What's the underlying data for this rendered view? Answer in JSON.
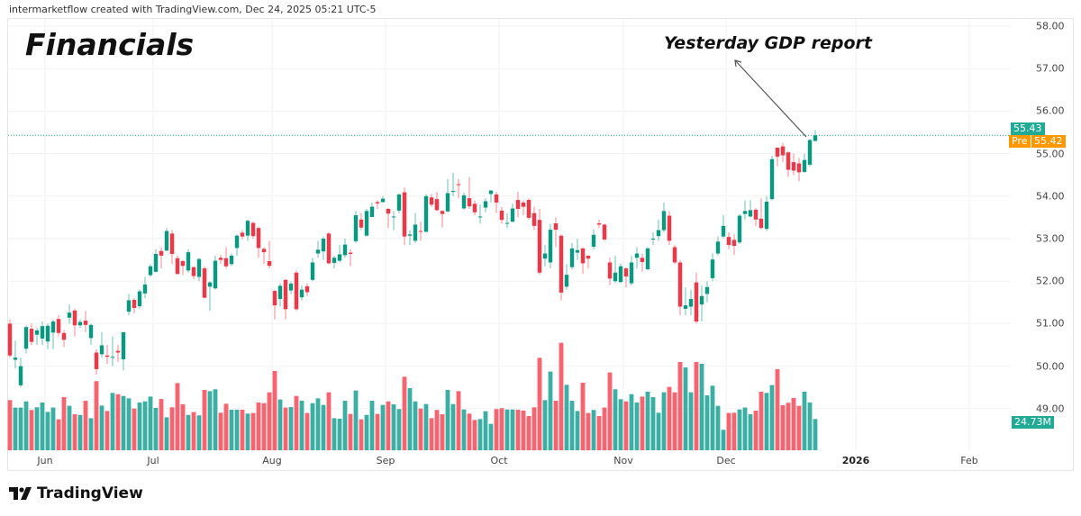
{
  "header": {
    "credit": "intermarketflow created with TradingView.com, Dec 24, 2025 05:21 UTC-5"
  },
  "footer": {
    "logo_text": "TradingView",
    "logo_icon": "tradingview-logo-icon"
  },
  "colors": {
    "up": "#089981",
    "down": "#f23645",
    "vol_up": "#26a69a",
    "vol_down": "#f7525f",
    "last_price": "#22ab94",
    "premarket": "#ff9800"
  },
  "chart_data": {
    "type": "candlestick",
    "title": "Financials",
    "annotation": {
      "text": "Yesterday GDP report",
      "arrow": true
    },
    "y_ticks": [
      "58.00",
      "57.00",
      "56.00",
      "55.00",
      "54.00",
      "53.00",
      "52.00",
      "51.00",
      "50.00",
      "49.00"
    ],
    "ylim": [
      48.5,
      58.3
    ],
    "x_ticks": [
      {
        "label": "Jun",
        "date": "2025-06-02"
      },
      {
        "label": "Jul",
        "date": "2025-07-01"
      },
      {
        "label": "Aug",
        "date": "2025-08-01"
      },
      {
        "label": "Sep",
        "date": "2025-09-02"
      },
      {
        "label": "Oct",
        "date": "2025-10-01"
      },
      {
        "label": "Nov",
        "date": "2025-11-03"
      },
      {
        "label": "Dec",
        "date": "2025-12-01"
      },
      {
        "label": "2026",
        "date": "2026-01-02",
        "bold": true
      },
      {
        "label": "Feb",
        "date": "2026-02-02"
      }
    ],
    "last_price": {
      "value": "55.43"
    },
    "premarket": {
      "label": "Pre",
      "value": "55.42"
    },
    "last_volume": {
      "value": "24.73M"
    },
    "grid": true,
    "columns": [
      "date",
      "open",
      "high",
      "low",
      "close",
      "volume_millions"
    ],
    "candles": [
      [
        "2025-05-21",
        51.0,
        51.1,
        50.2,
        50.25,
        39.7
      ],
      [
        "2025-05-22",
        50.15,
        50.6,
        49.95,
        50.2,
        33.8
      ],
      [
        "2025-05-23",
        49.55,
        50.2,
        49.5,
        50.0,
        33.8
      ],
      [
        "2025-05-27",
        50.41,
        50.95,
        50.3,
        50.92,
        38.7
      ],
      [
        "2025-05-28",
        50.88,
        51.0,
        50.5,
        50.57,
        31.9
      ],
      [
        "2025-05-29",
        50.74,
        50.9,
        50.5,
        50.84,
        34.0
      ],
      [
        "2025-05-30",
        50.65,
        51.05,
        50.5,
        50.94,
        37.8
      ],
      [
        "2025-06-02",
        50.58,
        51.0,
        50.4,
        50.95,
        30.4
      ],
      [
        "2025-06-03",
        50.79,
        51.1,
        50.4,
        51.05,
        33.8
      ],
      [
        "2025-06-04",
        51.11,
        51.2,
        50.7,
        50.78,
        24.5
      ],
      [
        "2025-06-05",
        50.78,
        50.85,
        50.45,
        50.62,
        42.1
      ],
      [
        "2025-06-06",
        51.14,
        51.45,
        51.0,
        51.26,
        35.2
      ],
      [
        "2025-06-09",
        51.31,
        51.35,
        50.7,
        50.96,
        28.5
      ],
      [
        "2025-06-10",
        50.96,
        51.1,
        50.9,
        51.04,
        28.0
      ],
      [
        "2025-06-11",
        51.07,
        51.3,
        50.8,
        50.97,
        39.2
      ],
      [
        "2025-06-12",
        50.66,
        51.0,
        50.5,
        50.97,
        25.4
      ],
      [
        "2025-06-13",
        50.32,
        50.4,
        49.8,
        49.93,
        54.7
      ],
      [
        "2025-06-16",
        50.28,
        50.8,
        50.2,
        50.49,
        35.4
      ],
      [
        "2025-06-17",
        50.25,
        50.5,
        50.05,
        50.22,
        31.1
      ],
      [
        "2025-06-18",
        50.2,
        50.7,
        50.0,
        50.22,
        45.4
      ],
      [
        "2025-06-20",
        50.36,
        50.5,
        50.1,
        50.32,
        44.4
      ],
      [
        "2025-06-23",
        50.16,
        50.8,
        49.9,
        50.8,
        43.0
      ],
      [
        "2025-06-24",
        51.28,
        51.7,
        51.2,
        51.55,
        41.1
      ],
      [
        "2025-06-25",
        51.56,
        51.6,
        51.25,
        51.37,
        33.0
      ],
      [
        "2025-06-26",
        51.41,
        51.8,
        51.35,
        51.76,
        37.8
      ],
      [
        "2025-06-27",
        51.71,
        52.1,
        51.6,
        51.92,
        38.7
      ],
      [
        "2025-06-30",
        52.14,
        52.4,
        52.1,
        52.35,
        42.5
      ],
      [
        "2025-07-01",
        52.22,
        52.75,
        52.2,
        52.64,
        33.5
      ],
      [
        "2025-07-02",
        52.71,
        52.8,
        52.3,
        52.6,
        40.6
      ],
      [
        "2025-07-03",
        52.72,
        53.25,
        52.7,
        53.18,
        26.1
      ],
      [
        "2025-07-07",
        53.12,
        53.2,
        52.4,
        52.64,
        34.0
      ],
      [
        "2025-07-08",
        52.54,
        52.6,
        52.15,
        52.17,
        53.2
      ],
      [
        "2025-07-09",
        52.47,
        52.5,
        52.15,
        52.36,
        36.4
      ],
      [
        "2025-07-10",
        52.25,
        52.75,
        52.2,
        52.68,
        28.0
      ],
      [
        "2025-07-11",
        52.33,
        52.35,
        52.05,
        52.12,
        30.2
      ],
      [
        "2025-07-14",
        52.1,
        52.55,
        52.0,
        52.52,
        27.6
      ],
      [
        "2025-07-15",
        52.3,
        52.35,
        51.6,
        51.61,
        47.8
      ],
      [
        "2025-07-16",
        51.87,
        52.0,
        51.3,
        51.97,
        46.8
      ],
      [
        "2025-07-17",
        51.83,
        52.6,
        51.8,
        52.48,
        48.3
      ],
      [
        "2025-07-18",
        52.55,
        52.62,
        52.4,
        52.5,
        29.7
      ],
      [
        "2025-07-21",
        52.54,
        52.8,
        52.3,
        52.35,
        36.8
      ],
      [
        "2025-07-22",
        52.4,
        52.65,
        52.35,
        52.6,
        32.1
      ],
      [
        "2025-07-23",
        52.78,
        53.1,
        52.6,
        53.07,
        32.1
      ],
      [
        "2025-07-24",
        53.14,
        53.2,
        52.98,
        53.05,
        32.1
      ],
      [
        "2025-07-25",
        53.07,
        53.45,
        52.95,
        53.42,
        29.0
      ],
      [
        "2025-07-28",
        53.37,
        53.4,
        53.0,
        53.06,
        29.5
      ],
      [
        "2025-07-29",
        53.25,
        53.28,
        52.55,
        52.78,
        37.8
      ],
      [
        "2025-07-30",
        52.76,
        52.8,
        52.4,
        52.68,
        37.3
      ],
      [
        "2025-07-31",
        52.47,
        52.95,
        52.3,
        52.36,
        45.9
      ],
      [
        "2025-08-01",
        51.77,
        51.8,
        51.1,
        51.43,
        62.8
      ],
      [
        "2025-08-04",
        51.58,
        51.95,
        51.4,
        51.89,
        40.2
      ],
      [
        "2025-08-05",
        52.03,
        52.05,
        51.1,
        51.34,
        33.8
      ],
      [
        "2025-08-06",
        51.78,
        52.0,
        51.7,
        51.94,
        34.2
      ],
      [
        "2025-08-07",
        52.2,
        52.25,
        51.3,
        51.34,
        43.0
      ],
      [
        "2025-08-08",
        51.62,
        51.9,
        51.55,
        51.8,
        39.2
      ],
      [
        "2025-08-11",
        51.88,
        51.95,
        51.65,
        51.74,
        29.5
      ],
      [
        "2025-08-12",
        52.03,
        52.55,
        52.0,
        52.44,
        37.3
      ],
      [
        "2025-08-13",
        52.65,
        52.95,
        52.55,
        52.74,
        41.1
      ],
      [
        "2025-08-14",
        52.7,
        53.05,
        52.5,
        53.0,
        35.9
      ],
      [
        "2025-08-15",
        53.12,
        53.15,
        52.4,
        52.42,
        45.9
      ],
      [
        "2025-08-18",
        52.43,
        52.6,
        52.3,
        52.55,
        25.4
      ],
      [
        "2025-08-19",
        52.48,
        52.85,
        52.45,
        52.63,
        25.0
      ],
      [
        "2025-08-20",
        52.61,
        53.0,
        52.55,
        52.86,
        39.2
      ],
      [
        "2025-08-21",
        52.67,
        52.75,
        52.35,
        52.64,
        28.8
      ],
      [
        "2025-08-22",
        52.94,
        53.65,
        52.9,
        53.55,
        47.3
      ],
      [
        "2025-08-25",
        53.45,
        53.6,
        53.2,
        53.26,
        24.5
      ],
      [
        "2025-08-26",
        53.07,
        53.7,
        53.05,
        53.65,
        28.0
      ],
      [
        "2025-08-27",
        53.51,
        53.85,
        53.5,
        53.75,
        39.2
      ],
      [
        "2025-08-28",
        53.86,
        53.9,
        53.7,
        53.83,
        28.8
      ],
      [
        "2025-08-29",
        53.86,
        54.0,
        53.85,
        53.94,
        35.9
      ],
      [
        "2025-09-02",
        53.7,
        53.72,
        53.25,
        53.59,
        38.7
      ],
      [
        "2025-09-03",
        53.5,
        53.65,
        53.2,
        53.52,
        36.4
      ],
      [
        "2025-09-04",
        53.66,
        54.06,
        53.6,
        54.04,
        32.6
      ],
      [
        "2025-09-05",
        54.09,
        54.2,
        52.85,
        53.05,
        58.2
      ],
      [
        "2025-09-08",
        53.07,
        53.2,
        52.85,
        53.1,
        49.2
      ],
      [
        "2025-09-09",
        52.95,
        53.6,
        52.9,
        53.33,
        38.7
      ],
      [
        "2025-09-10",
        53.18,
        53.4,
        52.95,
        53.16,
        33.0
      ],
      [
        "2025-09-11",
        53.16,
        54.05,
        53.15,
        54.0,
        36.6
      ],
      [
        "2025-09-12",
        53.97,
        54.05,
        53.75,
        53.8,
        25.4
      ],
      [
        "2025-09-15",
        53.93,
        54.1,
        53.65,
        53.67,
        31.9
      ],
      [
        "2025-09-16",
        53.65,
        53.67,
        53.26,
        53.58,
        28.5
      ],
      [
        "2025-09-17",
        53.64,
        54.4,
        53.62,
        54.07,
        47.8
      ],
      [
        "2025-09-18",
        54.1,
        54.55,
        54.0,
        54.12,
        36.6
      ],
      [
        "2025-09-19",
        54.28,
        54.4,
        53.95,
        54.26,
        46.8
      ],
      [
        "2025-09-22",
        53.71,
        54.08,
        53.68,
        54.02,
        32.3
      ],
      [
        "2025-09-23",
        53.95,
        54.45,
        53.7,
        53.76,
        29.0
      ],
      [
        "2025-09-24",
        53.82,
        53.9,
        53.55,
        53.62,
        24.0
      ],
      [
        "2025-09-25",
        53.5,
        53.8,
        53.35,
        53.52,
        24.7
      ],
      [
        "2025-09-26",
        53.73,
        53.95,
        53.62,
        53.88,
        30.9
      ],
      [
        "2025-09-29",
        54.05,
        54.15,
        53.85,
        54.13,
        20.9
      ],
      [
        "2025-09-30",
        54.04,
        54.1,
        53.6,
        53.85,
        32.6
      ],
      [
        "2025-10-01",
        53.66,
        53.75,
        53.35,
        53.44,
        33.3
      ],
      [
        "2025-10-02",
        53.35,
        53.6,
        53.25,
        53.37,
        32.3
      ],
      [
        "2025-10-03",
        53.4,
        53.83,
        53.38,
        53.71,
        32.3
      ],
      [
        "2025-10-06",
        53.91,
        54.1,
        53.5,
        53.7,
        32.1
      ],
      [
        "2025-10-07",
        53.85,
        53.9,
        53.55,
        53.75,
        31.4
      ],
      [
        "2025-10-08",
        53.91,
        53.95,
        53.45,
        53.49,
        27.1
      ],
      [
        "2025-10-09",
        53.6,
        53.75,
        53.2,
        53.3,
        34.0
      ],
      [
        "2025-10-10",
        53.44,
        53.7,
        52.15,
        52.2,
        73.2
      ],
      [
        "2025-10-13",
        52.53,
        52.85,
        52.35,
        52.65,
        39.7
      ],
      [
        "2025-10-14",
        52.44,
        53.35,
        52.3,
        53.21,
        62.3
      ],
      [
        "2025-10-15",
        53.36,
        53.5,
        52.8,
        53.21,
        39.2
      ],
      [
        "2025-10-16",
        53.07,
        53.1,
        51.55,
        51.73,
        85.1
      ],
      [
        "2025-10-17",
        51.87,
        52.4,
        51.8,
        52.15,
        51.8
      ],
      [
        "2025-10-20",
        52.33,
        52.9,
        52.28,
        52.77,
        39.2
      ],
      [
        "2025-10-21",
        52.67,
        53.0,
        52.5,
        52.73,
        31.1
      ],
      [
        "2025-10-22",
        52.77,
        52.8,
        52.17,
        52.42,
        53.5
      ],
      [
        "2025-10-23",
        52.6,
        52.6,
        52.3,
        52.53,
        29.5
      ],
      [
        "2025-10-24",
        52.81,
        53.22,
        52.75,
        53.09,
        31.9
      ],
      [
        "2025-10-27",
        53.36,
        53.45,
        53.25,
        53.33,
        27.1
      ],
      [
        "2025-10-28",
        53.33,
        53.35,
        52.95,
        52.98,
        33.8
      ],
      [
        "2025-10-29",
        52.44,
        52.55,
        51.9,
        52.06,
        61.6
      ],
      [
        "2025-10-30",
        52.0,
        52.6,
        51.95,
        52.2,
        48.3
      ],
      [
        "2025-10-31",
        51.98,
        52.42,
        51.95,
        52.35,
        40.4
      ],
      [
        "2025-11-03",
        52.3,
        52.33,
        51.85,
        52.11,
        38.7
      ],
      [
        "2025-11-04",
        51.95,
        52.6,
        51.9,
        52.44,
        44.4
      ],
      [
        "2025-11-05",
        52.55,
        52.8,
        52.3,
        52.65,
        37.8
      ],
      [
        "2025-11-06",
        52.55,
        52.65,
        52.22,
        52.45,
        42.5
      ],
      [
        "2025-11-07",
        52.28,
        52.8,
        52.25,
        52.77,
        46.4
      ],
      [
        "2025-11-10",
        52.98,
        53.15,
        52.85,
        53.0,
        42.1
      ],
      [
        "2025-11-11",
        53.06,
        53.45,
        52.95,
        53.2,
        29.7
      ],
      [
        "2025-11-12",
        53.2,
        53.85,
        53.15,
        53.65,
        45.9
      ],
      [
        "2025-11-13",
        53.54,
        53.65,
        52.85,
        52.95,
        50.2
      ],
      [
        "2025-11-14",
        52.8,
        52.85,
        52.4,
        52.44,
        45.9
      ],
      [
        "2025-11-17",
        52.44,
        52.5,
        51.2,
        51.4,
        69.9
      ],
      [
        "2025-11-18",
        51.35,
        51.85,
        51.2,
        51.43,
        65.6
      ],
      [
        "2025-11-19",
        51.4,
        51.8,
        51.2,
        51.58,
        45.9
      ],
      [
        "2025-11-20",
        51.97,
        52.2,
        51.0,
        51.05,
        69.9
      ],
      [
        "2025-11-21",
        51.45,
        51.9,
        51.05,
        51.65,
        68.5
      ],
      [
        "2025-11-24",
        51.7,
        52.0,
        51.5,
        51.86,
        43.5
      ],
      [
        "2025-11-25",
        52.07,
        52.65,
        52.0,
        52.51,
        51.1
      ],
      [
        "2025-11-26",
        52.65,
        53.05,
        52.6,
        52.93,
        35.2
      ],
      [
        "2025-11-28",
        53.05,
        53.55,
        53.0,
        53.3,
        16.2
      ],
      [
        "2025-12-01",
        53.04,
        53.15,
        52.75,
        52.85,
        29.5
      ],
      [
        "2025-12-02",
        52.97,
        53.1,
        52.62,
        52.83,
        29.7
      ],
      [
        "2025-12-03",
        52.91,
        53.58,
        52.88,
        53.54,
        32.3
      ],
      [
        "2025-12-04",
        53.58,
        53.9,
        53.45,
        53.65,
        33.8
      ],
      [
        "2025-12-05",
        53.52,
        53.9,
        53.5,
        53.67,
        28.5
      ],
      [
        "2025-12-08",
        53.68,
        53.72,
        53.3,
        53.45,
        31.4
      ],
      [
        "2025-12-09",
        53.47,
        53.95,
        53.22,
        53.25,
        46.4
      ],
      [
        "2025-12-10",
        53.23,
        54.0,
        53.18,
        53.87,
        45.4
      ],
      [
        "2025-12-11",
        53.93,
        54.95,
        53.9,
        54.87,
        51.6
      ],
      [
        "2025-12-12",
        55.14,
        55.15,
        54.7,
        54.93,
        64.2
      ],
      [
        "2025-12-15",
        55.17,
        55.25,
        54.8,
        54.96,
        35.7
      ],
      [
        "2025-12-16",
        55.03,
        55.06,
        54.45,
        54.62,
        37.6
      ],
      [
        "2025-12-17",
        54.8,
        55.0,
        54.5,
        54.6,
        41.4
      ],
      [
        "2025-12-18",
        54.77,
        54.9,
        54.35,
        54.56,
        35.2
      ],
      [
        "2025-12-19",
        54.57,
        55.0,
        54.55,
        54.85,
        46.4
      ],
      [
        "2025-12-22",
        54.74,
        55.35,
        54.7,
        55.32,
        37.8
      ],
      [
        "2025-12-23",
        55.3,
        55.55,
        55.28,
        55.43,
        24.73
      ]
    ]
  }
}
